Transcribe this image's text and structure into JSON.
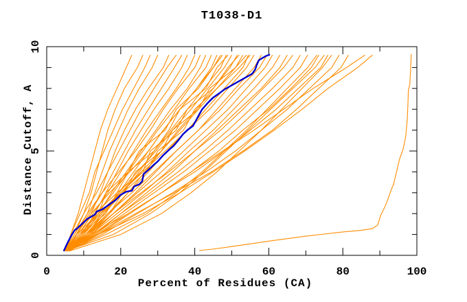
{
  "title": "T1038-D1",
  "axes": {
    "xlabel": "Percent of Residues (CA)",
    "ylabel": "Distance Cutoff, A"
  },
  "colors": {
    "background": "#ffffff",
    "axis": "#000000",
    "model_line": "#ff8c00",
    "best_model_line": "#0000cd"
  },
  "chart_data": {
    "type": "line",
    "title": "T1038-D1",
    "xlabel": "Percent of Residues (CA)",
    "ylabel": "Distance Cutoff, A",
    "xlim": [
      0,
      100
    ],
    "ylim": [
      0,
      10
    ],
    "x_major_ticks": [
      0,
      20,
      40,
      60,
      80,
      100
    ],
    "x_minor_step": 10,
    "y_major_ticks": [
      0,
      5,
      10
    ],
    "y_minor_step": 1,
    "grid": false,
    "legend": "none",
    "distance_grid": [
      0.2,
      1,
      2,
      3,
      4,
      5,
      6,
      7,
      8,
      9,
      9.6
    ],
    "model_curves": [
      [
        5,
        6.5,
        8.5,
        10,
        11.5,
        13,
        14.5,
        16.5,
        19,
        21.5,
        23
      ],
      [
        5,
        7.5,
        10,
        12,
        13.5,
        15,
        16.5,
        18.5,
        21,
        24.5,
        26
      ],
      [
        5,
        6.5,
        9,
        11.5,
        13,
        15.5,
        18,
        20.5,
        23.5,
        26.5,
        28
      ],
      [
        5.5,
        8,
        11,
        13,
        15,
        17,
        19.5,
        22,
        25,
        28.5,
        30
      ],
      [
        5,
        9,
        12,
        14.5,
        16.5,
        18.5,
        21,
        24,
        27.5,
        31.5,
        33
      ],
      [
        5,
        7,
        10,
        13.5,
        16.5,
        19.5,
        22.5,
        25.5,
        29,
        32.5,
        35
      ],
      [
        5,
        8,
        11.5,
        15,
        18,
        21,
        24,
        27.5,
        31,
        34.5,
        36.5
      ],
      [
        5.5,
        9.5,
        13,
        16,
        19,
        22,
        25.5,
        29,
        33,
        36.5,
        38
      ],
      [
        5,
        8.5,
        12.5,
        16.5,
        20,
        23.5,
        27,
        31,
        35,
        38.5,
        40
      ],
      [
        5,
        7.5,
        11,
        15,
        19.5,
        24,
        28,
        31.5,
        35.5,
        40,
        41.5
      ],
      [
        5.5,
        10,
        14,
        17.5,
        21.5,
        25.5,
        29.5,
        33.5,
        38,
        41.5,
        43
      ],
      [
        5,
        9,
        13.5,
        18,
        22,
        26,
        30,
        34.5,
        38.5,
        43,
        44.5
      ],
      [
        6,
        11,
        15.5,
        19.5,
        23.5,
        27.5,
        31.5,
        36,
        40.5,
        44.5,
        46
      ],
      [
        5,
        8,
        12,
        17,
        22.5,
        27.5,
        31.5,
        36,
        40.5,
        45,
        47
      ],
      [
        5.5,
        10.5,
        15.5,
        20.5,
        25,
        29,
        33.5,
        38,
        42.5,
        47,
        48.5
      ],
      [
        5,
        9.5,
        14.5,
        19.5,
        24.5,
        29.5,
        34,
        39,
        43.5,
        48,
        50
      ],
      [
        6,
        11.5,
        17,
        22,
        26.5,
        31,
        35.5,
        40.5,
        45,
        49.5,
        51.5
      ],
      [
        5,
        10,
        15,
        20,
        25.5,
        31,
        36,
        41,
        46,
        51,
        53
      ],
      [
        5.5,
        11,
        16.5,
        22,
        27.5,
        32.5,
        38,
        43,
        48,
        53,
        54.5
      ],
      [
        5,
        9,
        14,
        20,
        26,
        32,
        38,
        44,
        49,
        54,
        56
      ],
      [
        6,
        12,
        18,
        24,
        29.5,
        35,
        41,
        46,
        51,
        56,
        58
      ],
      [
        5,
        10.5,
        16.5,
        23,
        29,
        35,
        41,
        47,
        52,
        57.5,
        59.5
      ],
      [
        5.5,
        11.5,
        18,
        24.5,
        31,
        37,
        43,
        49,
        54,
        59,
        61
      ],
      [
        5,
        12,
        19,
        26,
        32.5,
        38.5,
        45,
        50.5,
        56,
        61,
        63
      ],
      [
        6,
        13,
        20,
        27,
        34,
        40,
        46,
        52,
        58,
        63,
        65
      ],
      [
        5,
        11,
        18,
        25.5,
        33,
        40,
        47,
        53,
        58.5,
        64,
        66.5
      ],
      [
        5.5,
        12.5,
        20,
        28,
        35.5,
        42.5,
        49,
        55,
        61,
        66.5,
        68.5
      ],
      [
        5,
        13,
        21,
        29,
        37,
        44,
        51,
        57,
        63,
        68.5,
        70.5
      ],
      [
        6,
        14,
        22.5,
        31,
        39,
        46.5,
        53,
        60,
        66,
        71.5,
        73.5
      ],
      [
        5,
        13.5,
        22,
        31,
        40,
        48,
        55,
        62,
        68,
        74,
        76
      ],
      [
        5.5,
        15,
        24.5,
        34,
        43,
        51,
        58,
        65,
        71,
        77,
        79
      ],
      [
        5,
        14,
        24,
        34.5,
        44.5,
        53,
        61,
        67.5,
        73.5,
        79.5,
        81.5
      ],
      [
        5,
        12,
        22,
        31,
        39,
        47.5,
        56,
        64,
        72,
        81,
        86
      ],
      [
        5,
        14,
        26,
        36,
        45,
        53.5,
        61.5,
        69,
        76,
        84,
        88
      ],
      [
        5.5,
        16,
        27,
        35,
        42,
        48,
        54,
        59.5,
        65,
        70.5,
        73
      ],
      [
        5,
        18,
        28,
        36,
        42.5,
        48.5,
        54.5,
        60.5,
        66.5,
        72.5,
        75
      ],
      [
        6,
        20,
        31,
        39,
        46,
        52,
        58,
        63.5,
        69,
        74.5,
        77
      ],
      [
        5,
        9,
        16,
        19,
        26,
        28,
        35,
        38,
        45,
        49,
        52
      ],
      [
        5.5,
        12,
        14.5,
        21,
        24,
        31,
        34,
        41,
        44,
        51,
        54
      ],
      [
        5,
        10,
        13,
        19,
        22,
        29,
        33,
        36,
        43,
        46,
        49
      ],
      [
        6,
        8,
        14,
        16,
        22,
        25,
        32,
        35,
        41,
        45,
        47.5
      ],
      [
        5,
        11,
        17,
        20.5,
        27,
        30,
        37,
        40,
        46,
        52,
        55
      ]
    ],
    "best_model_curve": [
      [
        4.6,
        0.2
      ],
      [
        5.5,
        0.55
      ],
      [
        6.5,
        0.9
      ],
      [
        7.5,
        1.2
      ],
      [
        8.3,
        1.3
      ],
      [
        9.5,
        1.5
      ],
      [
        11,
        1.75
      ],
      [
        13,
        1.95
      ],
      [
        13.5,
        2.1
      ],
      [
        15,
        2.2
      ],
      [
        17,
        2.45
      ],
      [
        18.6,
        2.65
      ],
      [
        20,
        2.9
      ],
      [
        21.5,
        3.05
      ],
      [
        23,
        3.1
      ],
      [
        23.6,
        3.3
      ],
      [
        25,
        3.4
      ],
      [
        25.8,
        3.55
      ],
      [
        26.2,
        3.9
      ],
      [
        27.5,
        4.1
      ],
      [
        29,
        4.35
      ],
      [
        30,
        4.5
      ],
      [
        31.5,
        4.8
      ],
      [
        33,
        5.05
      ],
      [
        34.3,
        5.25
      ],
      [
        35.5,
        5.5
      ],
      [
        36.8,
        5.8
      ],
      [
        38,
        6.0
      ],
      [
        39.5,
        6.2
      ],
      [
        40.3,
        6.45
      ],
      [
        41.2,
        6.75
      ],
      [
        42,
        7.0
      ],
      [
        43.5,
        7.3
      ],
      [
        44.9,
        7.55
      ],
      [
        46.5,
        7.75
      ],
      [
        48,
        7.95
      ],
      [
        49.5,
        8.1
      ],
      [
        51,
        8.25
      ],
      [
        52.5,
        8.4
      ],
      [
        54,
        8.55
      ],
      [
        55.5,
        8.7
      ],
      [
        56.3,
        8.9
      ],
      [
        56.8,
        9.15
      ],
      [
        57.3,
        9.35
      ],
      [
        58.2,
        9.45
      ],
      [
        59.2,
        9.55
      ],
      [
        60.3,
        9.62
      ]
    ],
    "outlier_curve": [
      [
        41.2,
        0.23
      ],
      [
        45,
        0.3
      ],
      [
        50,
        0.42
      ],
      [
        55,
        0.55
      ],
      [
        60,
        0.68
      ],
      [
        65,
        0.8
      ],
      [
        70,
        0.92
      ],
      [
        75,
        1.02
      ],
      [
        80,
        1.12
      ],
      [
        85,
        1.2
      ],
      [
        88,
        1.28
      ],
      [
        89.4,
        1.45
      ],
      [
        90.3,
        1.95
      ],
      [
        91.3,
        2.3
      ],
      [
        92,
        2.6
      ],
      [
        92.8,
        3.0
      ],
      [
        93.2,
        3.2
      ],
      [
        93.7,
        3.4
      ],
      [
        94.5,
        4.0
      ],
      [
        95.3,
        4.6
      ],
      [
        96.3,
        5.1
      ],
      [
        97,
        5.7
      ],
      [
        97.4,
        6.5
      ],
      [
        97.6,
        7.3
      ],
      [
        97.7,
        7.9
      ],
      [
        98.1,
        8.2
      ],
      [
        98.3,
        8.9
      ],
      [
        98.4,
        9.3
      ],
      [
        98.5,
        9.65
      ]
    ]
  }
}
